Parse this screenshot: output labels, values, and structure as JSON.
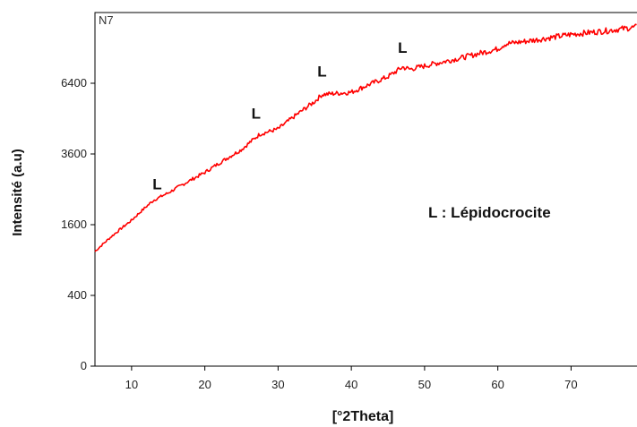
{
  "chart_data": {
    "type": "line",
    "title": "",
    "sample_label": "N7",
    "xlabel": "[°2Theta]",
    "ylabel": "Intensité (a.u)",
    "xlim": [
      5,
      79
    ],
    "ylim": [
      0,
      10000
    ],
    "y_scale": "sqrt",
    "x_ticks": [
      10,
      20,
      30,
      40,
      50,
      60,
      70
    ],
    "y_ticks": [
      0,
      400,
      1600,
      3600,
      6400
    ],
    "grid": false,
    "line_color": "#ff0000",
    "series": [
      {
        "x": [
          5,
          10,
          13,
          15,
          20,
          25,
          27.5,
          30,
          35,
          36,
          40,
          45,
          47,
          48,
          55,
          60,
          61,
          65,
          70,
          75,
          79
        ],
        "y": [
          1050,
          1700,
          2200,
          2400,
          3000,
          3750,
          4300,
          4500,
          5600,
          5900,
          6000,
          6700,
          7150,
          7050,
          7600,
          8050,
          8300,
          8500,
          8800,
          9000,
          9200
        ]
      }
    ],
    "annotations": [
      {
        "text": "L",
        "x": 13.5,
        "y": 2500
      },
      {
        "text": "L",
        "x": 27,
        "y": 4900
      },
      {
        "text": "L",
        "x": 36,
        "y": 6700
      },
      {
        "text": "L",
        "x": 47,
        "y": 7850
      }
    ],
    "legend_text": "L : Lépidocrocite"
  }
}
